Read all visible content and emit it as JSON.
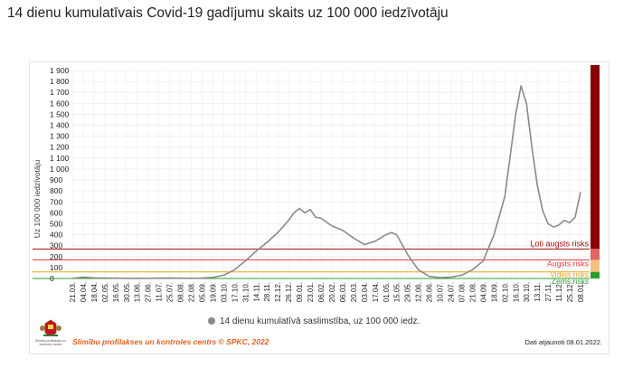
{
  "page": {
    "title": "14 dienu kumulatīvais Covid-19 gadījumu skaits uz 100 000 iedzīvotāju"
  },
  "logo": {
    "caption": "Slimību profilakses un kontroles centrs"
  },
  "footer": {
    "source": "Slimību profilakses un kontroles centrs © SPKC, 2022",
    "updated": "Dati atjaunoti 08.01.2022."
  },
  "colors": {
    "line": "#8a8a8a",
    "very_high": "#a50f0f",
    "high": "#e8373a",
    "medium": "#e6a418",
    "low": "#2e9e35",
    "very_high_box": "#8b0000",
    "high_box": "#e06666",
    "medium_box": "#f4c27a",
    "low_box": "#2aa02a"
  },
  "chart_data": {
    "type": "line",
    "ylabel": "Uz 100 000 iedzīvotāju",
    "ylim": [
      0,
      1900
    ],
    "y_ticks": [
      "0",
      "100",
      "200",
      "300",
      "400",
      "500",
      "600",
      "700",
      "800",
      "900",
      "1 000",
      "1 100",
      "1 200",
      "1 300",
      "1 400",
      "1 500",
      "1 600",
      "1 700",
      "1 800",
      "1 900"
    ],
    "y_tick_values": [
      0,
      100,
      200,
      300,
      400,
      500,
      600,
      700,
      800,
      900,
      1000,
      1100,
      1200,
      1300,
      1400,
      1500,
      1600,
      1700,
      1800,
      1900
    ],
    "x_ticks": [
      "21.03.",
      "04.04.",
      "18.04.",
      "02.05.",
      "16.05.",
      "30.05.",
      "13.06.",
      "27.06.",
      "11.07.",
      "25.07.",
      "08.08.",
      "22.08.",
      "05.09.",
      "19.09.",
      "03.10.",
      "17.10.",
      "31.10.",
      "14.11.",
      "28.11.",
      "12.12.",
      "26.12.",
      "09.01.",
      "23.01.",
      "06.02.",
      "20.02.",
      "06.03.",
      "20.03.",
      "03.04.",
      "17.04.",
      "01.05.",
      "15.05.",
      "29.05.",
      "12.06.",
      "26.06.",
      "10.07.",
      "24.07.",
      "07.08.",
      "21.08.",
      "04.09.",
      "18.09.",
      "02.10.",
      "16.10.",
      "30.10.",
      "13.11.",
      "27.11.",
      "11.12.",
      "25.12.",
      "08.01."
    ],
    "series": [
      {
        "name": "14 dienu kumulatīvā saslimstība, uz 100 000 iedz.",
        "x_index": [
          0,
          1,
          2,
          3,
          4,
          5,
          6,
          7,
          8,
          9,
          10,
          11,
          12,
          13,
          14,
          15,
          16,
          17,
          18,
          19,
          20,
          20.5,
          21,
          21.5,
          22,
          22.5,
          23,
          24,
          25,
          26,
          27,
          28,
          29,
          29.5,
          30,
          31,
          32,
          33,
          34,
          35,
          36,
          37,
          38,
          39,
          40,
          41,
          41.5,
          42,
          42.5,
          43,
          43.5,
          44,
          44.5,
          45,
          45.5,
          46,
          46.5,
          47
        ],
        "values": [
          2,
          12,
          6,
          4,
          3,
          2,
          2,
          2,
          3,
          3,
          3,
          2,
          3,
          10,
          30,
          80,
          160,
          250,
          330,
          420,
          530,
          600,
          640,
          600,
          630,
          560,
          550,
          480,
          440,
          370,
          310,
          340,
          400,
          420,
          400,
          220,
          80,
          20,
          8,
          12,
          30,
          80,
          160,
          400,
          750,
          1500,
          1760,
          1600,
          1200,
          850,
          620,
          500,
          470,
          490,
          530,
          510,
          560,
          790
        ]
      }
    ],
    "risk_levels": [
      {
        "label": "Ļoti augsts risks",
        "value": 270
      },
      {
        "label": "Augsts risks",
        "value": 170
      },
      {
        "label": "Vidējs risks",
        "value": 60
      },
      {
        "label": "Zems risks",
        "value": 0
      }
    ],
    "risk_bar": [
      {
        "from": 270,
        "to": 1950
      },
      {
        "from": 170,
        "to": 270
      },
      {
        "from": 60,
        "to": 170
      },
      {
        "from": 0,
        "to": 60
      }
    ],
    "grid": true,
    "legend_position": "bottom"
  }
}
